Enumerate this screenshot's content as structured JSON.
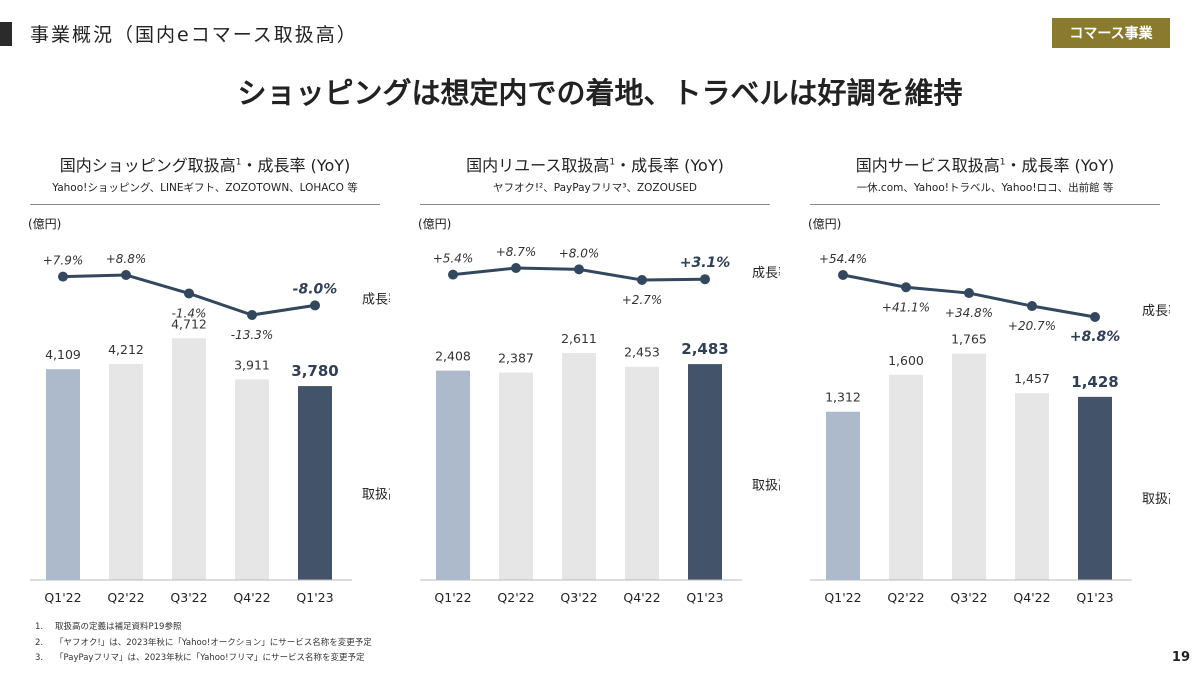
{
  "header": {
    "section_title": "事業概況（国内eコマース取扱高）",
    "badge": "コマース事業",
    "headline": "ショッピングは想定内での着地、トラベルは好調を維持"
  },
  "footnotes": [
    {
      "num": "1.",
      "text": "取扱高の定義は補足資料P19参照"
    },
    {
      "num": "2.",
      "text": "「ヤフオク!」は、2023年秋に「Yahoo!オークション」にサービス名称を変更予定"
    },
    {
      "num": "3.",
      "text": "「PayPayフリマ」は、2023年秋に「Yahoo!フリマ」にサービス名称を変更予定"
    }
  ],
  "page_number": "19",
  "colors": {
    "first_bar": "#adbacb",
    "middle_bar": "#e6e6e6",
    "latest_bar": "#435369",
    "line": "#33475e"
  },
  "chart_data": [
    {
      "type": "bar",
      "title": "国内ショッピング取扱高",
      "title_sup": "1",
      "title_suffix": "・成長率 (YoY)",
      "subtitle": "Yahoo!ショッピング、LINEギフト、ZOZOTOWN、LOHACO 等",
      "unit_label": "(億円)",
      "categories": [
        "Q1'22",
        "Q2'22",
        "Q3'22",
        "Q4'22",
        "Q1'23"
      ],
      "values": [
        4109,
        4212,
        4712,
        3911,
        3780
      ],
      "value_labels": [
        "4,109",
        "4,212",
        "4,712",
        "3,911",
        "3,780"
      ],
      "growth": [
        7.9,
        8.8,
        -1.4,
        -13.3,
        -8.0
      ],
      "growth_labels": [
        "+7.9%",
        "+8.8%",
        "-1.4%",
        "-13.3%",
        "-8.0%"
      ],
      "bar_series_label": "取扱高",
      "line_series_label": "成長率"
    },
    {
      "type": "bar",
      "title": "国内リユース取扱高",
      "title_sup": "1",
      "title_suffix": "・成長率 (YoY)",
      "subtitle": "ヤフオク!²、PayPayフリマ³、ZOZOUSED",
      "unit_label": "(億円)",
      "categories": [
        "Q1'22",
        "Q2'22",
        "Q3'22",
        "Q4'22",
        "Q1'23"
      ],
      "values": [
        2408,
        2387,
        2611,
        2453,
        2483
      ],
      "value_labels": [
        "2,408",
        "2,387",
        "2,611",
        "2,453",
        "2,483"
      ],
      "growth": [
        5.4,
        8.7,
        8.0,
        2.7,
        3.1
      ],
      "growth_labels": [
        "+5.4%",
        "+8.7%",
        "+8.0%",
        "+2.7%",
        "+3.1%"
      ],
      "bar_series_label": "取扱高",
      "line_series_label": "成長率"
    },
    {
      "type": "bar",
      "title": "国内サービス取扱高",
      "title_sup": "1",
      "title_suffix": "・成長率 (YoY)",
      "subtitle": "一休.com、Yahoo!トラベル、Yahoo!ロコ、出前館 等",
      "unit_label": "(億円)",
      "categories": [
        "Q1'22",
        "Q2'22",
        "Q3'22",
        "Q4'22",
        "Q1'23"
      ],
      "values": [
        1312,
        1600,
        1765,
        1457,
        1428
      ],
      "value_labels": [
        "1,312",
        "1,600",
        "1,765",
        "1,457",
        "1,428"
      ],
      "growth": [
        54.4,
        41.1,
        34.8,
        20.7,
        8.8
      ],
      "growth_labels": [
        "+54.4%",
        "+41.1%",
        "+34.8%",
        "+20.7%",
        "+8.8%"
      ],
      "bar_series_label": "取扱高",
      "line_series_label": "成長率"
    }
  ]
}
